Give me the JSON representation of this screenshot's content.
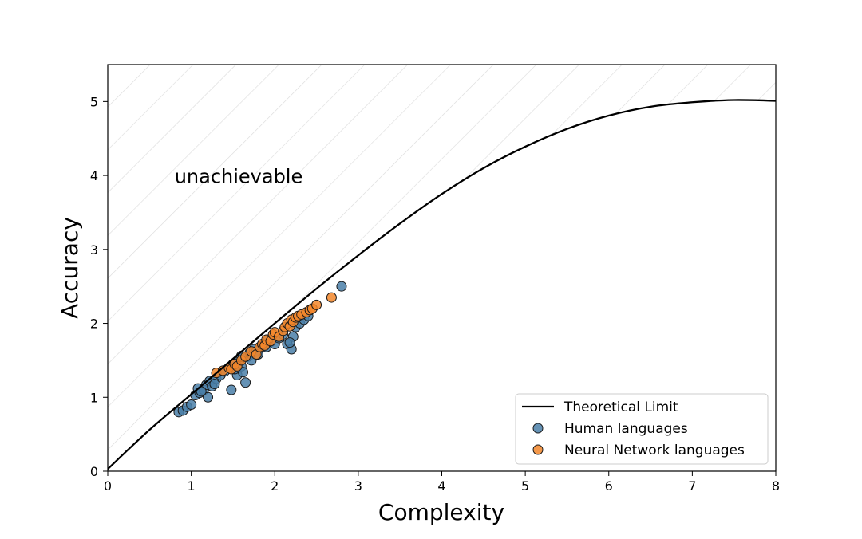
{
  "chart_data": {
    "type": "scatter",
    "title": "",
    "xlabel": "Complexity",
    "ylabel": "Accuracy",
    "xlim": [
      0,
      8
    ],
    "ylim": [
      0,
      5.5
    ],
    "xticks": [
      "0",
      "1",
      "2",
      "3",
      "4",
      "5",
      "6",
      "7",
      "8"
    ],
    "yticks": [
      "0",
      "1",
      "2",
      "3",
      "4",
      "5"
    ],
    "grid": false,
    "legend_position": "bottom-right",
    "annotation": {
      "text": "unachievable",
      "x": 0.8,
      "y": 3.9
    },
    "colors": {
      "limit_line": "#000000",
      "human": "#4a7fa8",
      "neural": "#f2862a",
      "hatch": "#dcdcdc"
    },
    "series": [
      {
        "name": "Theoretical Limit",
        "kind": "line",
        "x": [
          0,
          0.5,
          1,
          1.5,
          2,
          2.5,
          3,
          3.5,
          4,
          4.5,
          5,
          5.5,
          6,
          6.5,
          7,
          7.5,
          8
        ],
        "y": [
          0.03,
          0.56,
          1.04,
          1.52,
          2.0,
          2.47,
          2.92,
          3.35,
          3.75,
          4.1,
          4.39,
          4.63,
          4.81,
          4.93,
          4.99,
          5.02,
          5.01
        ]
      },
      {
        "name": "Human languages",
        "kind": "scatter",
        "x": [
          0.85,
          0.9,
          0.95,
          1.0,
          1.05,
          1.08,
          1.1,
          1.15,
          1.18,
          1.2,
          1.22,
          1.25,
          1.3,
          1.35,
          1.4,
          1.45,
          1.48,
          1.5,
          1.55,
          1.58,
          1.6,
          1.62,
          1.65,
          1.68,
          1.7,
          1.72,
          1.75,
          1.8,
          1.85,
          1.9,
          1.95,
          2.0,
          2.05,
          2.1,
          2.15,
          2.2,
          2.22,
          2.25,
          2.3,
          2.35,
          2.4,
          2.8,
          1.12,
          1.28,
          1.52,
          1.6,
          1.78,
          1.92,
          2.18
        ],
        "y": [
          0.8,
          0.82,
          0.87,
          0.9,
          1.03,
          1.12,
          1.06,
          1.1,
          1.17,
          1.0,
          1.22,
          1.15,
          1.25,
          1.3,
          1.35,
          1.4,
          1.1,
          1.45,
          1.3,
          1.5,
          1.42,
          1.34,
          1.2,
          1.55,
          1.6,
          1.5,
          1.65,
          1.58,
          1.7,
          1.68,
          1.75,
          1.72,
          1.8,
          1.85,
          1.72,
          1.65,
          1.82,
          1.95,
          2.0,
          2.05,
          2.1,
          2.5,
          1.08,
          1.18,
          1.38,
          1.56,
          1.62,
          1.78,
          1.74
        ]
      },
      {
        "name": "Neural Network languages",
        "kind": "scatter",
        "x": [
          1.3,
          1.38,
          1.45,
          1.48,
          1.52,
          1.55,
          1.6,
          1.65,
          1.72,
          1.78,
          1.82,
          1.85,
          1.88,
          1.9,
          1.95,
          1.98,
          2.0,
          2.05,
          2.1,
          2.12,
          2.15,
          2.18,
          2.2,
          2.22,
          2.25,
          2.28,
          2.32,
          2.38,
          2.42,
          2.45,
          2.5,
          2.68
        ],
        "y": [
          1.33,
          1.36,
          1.4,
          1.38,
          1.45,
          1.42,
          1.5,
          1.55,
          1.62,
          1.58,
          1.68,
          1.72,
          1.7,
          1.78,
          1.76,
          1.85,
          1.88,
          1.82,
          1.9,
          1.95,
          2.0,
          1.96,
          2.05,
          2.02,
          2.08,
          2.1,
          2.12,
          2.15,
          2.18,
          2.2,
          2.25,
          2.35
        ]
      }
    ]
  }
}
